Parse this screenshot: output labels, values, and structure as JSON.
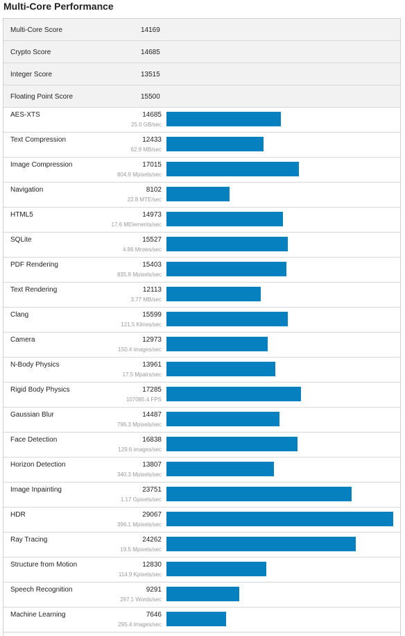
{
  "header": {
    "title": "Multi-Core Performance"
  },
  "colors": {
    "bar": "#0780c0",
    "score_row_bg": "#f2f2f2",
    "border": "#d6d6d6"
  },
  "scores": [
    {
      "label": "Multi-Core Score",
      "value": "14169"
    },
    {
      "label": "Crypto Score",
      "value": "14685"
    },
    {
      "label": "Integer Score",
      "value": "13515"
    },
    {
      "label": "Floating Point Score",
      "value": "15500"
    }
  ],
  "chart_data": {
    "type": "bar",
    "orientation": "horizontal",
    "categories": [
      "AES-XTS",
      "Text Compression",
      "Image Compression",
      "Navigation",
      "HTML5",
      "SQLite",
      "PDF Rendering",
      "Text Rendering",
      "Clang",
      "Camera",
      "N-Body Physics",
      "Rigid Body Physics",
      "Gaussian Blur",
      "Face Detection",
      "Horizon Detection",
      "Image Inpainting",
      "HDR",
      "Ray Tracing",
      "Structure from Motion",
      "Speech Recognition",
      "Machine Learning"
    ],
    "values": [
      14685,
      12433,
      17015,
      8102,
      14973,
      15527,
      15403,
      12113,
      15599,
      12973,
      13961,
      17285,
      14487,
      16838,
      13807,
      23751,
      29067,
      24262,
      12830,
      9291,
      7646
    ],
    "rates": [
      "25.0 GB/sec",
      "62.9 MB/sec",
      "804.9 Mpixels/sec",
      "22.8 MTE/sec",
      "17.6 MElements/sec",
      "4.86 Mrows/sec",
      "835.9 Mpixels/sec",
      "3.77 MB/sec",
      "121.5 Klines/sec",
      "150.4 images/sec",
      "17.5 Mpairs/sec",
      "107085.4 FPS",
      "796.3 Mpixels/sec",
      "129.6 images/sec",
      "340.3 Mpixels/sec",
      "1.17 Gpixels/sec",
      "396.1 Mpixels/sec",
      "19.5 Mpixels/sec",
      "114.9 Kpixels/sec",
      "297.1 Words/sec",
      "295.4 images/sec"
    ],
    "xlim": [
      0,
      29067
    ]
  }
}
